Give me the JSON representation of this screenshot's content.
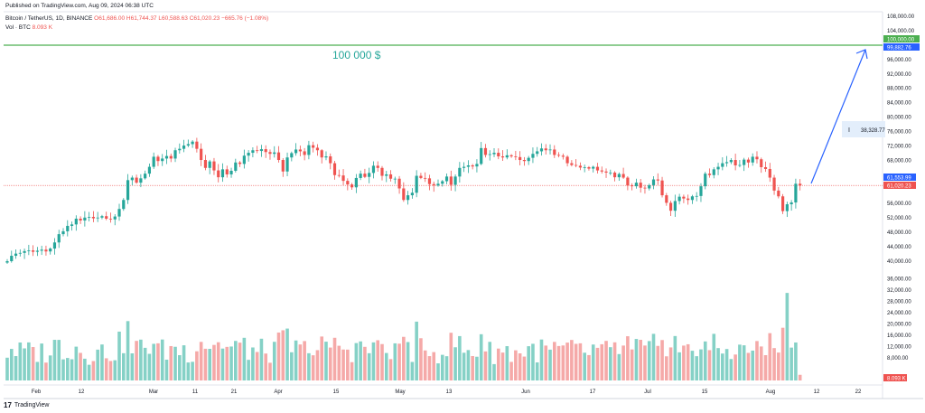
{
  "header": {
    "published": "Published on TradingView.com, Aug 09, 2024 06:38 UTC",
    "symbol": "Bitcoin / TetherUS, 1D, BINANCE",
    "ohlc": "O61,686.00  H61,744.37  L60,588.63  C61,020.23  −665.76 (−1.08%)",
    "volume_label": "Vol · BTC",
    "volume_value": "8.093 K"
  },
  "annotation": {
    "target_text": "100 000 $",
    "measure_text": "38,328.77"
  },
  "footer": {
    "brand": "TradingView",
    "logo": "17"
  },
  "colors": {
    "up": "#26a69a",
    "down": "#ef5350",
    "vol_up": "#85d1c6",
    "vol_down": "#f5a9a8",
    "target_line": "#4caf50",
    "arrow": "#2962ff",
    "measure_bg": "#e3eefb"
  },
  "chart_data": {
    "type": "candlestick",
    "title": "Bitcoin / TetherUS, 1D, BINANCE",
    "price_axis": {
      "ticks": [
        "108,000.00",
        "104,000.00",
        "96,000.00",
        "92,000.00",
        "88,000.00",
        "84,000.00",
        "80,000.00",
        "76,000.00",
        "72,000.00",
        "68,000.00",
        "56,000.00",
        "52,000.00",
        "48,000.00",
        "44,000.00",
        "40,000.00",
        "36,000.00",
        "32,000.00",
        "28,000.00",
        "24,000.00",
        "20,000.00",
        "16,000.00",
        "12,000.00",
        "8,000.00"
      ],
      "range": [
        0,
        110000
      ]
    },
    "time_axis": {
      "labels": [
        "Feb",
        "12",
        "Mar",
        "11",
        "21",
        "Apr",
        "15",
        "May",
        "13",
        "Jun",
        "17",
        "Jul",
        "15",
        "Aug",
        "12",
        "22"
      ]
    },
    "price_tags": {
      "target": "100,000.00",
      "target_sub": "99,882.76",
      "last_high": "61,553.99",
      "last_close": "61,020.23",
      "volume_last": "8.093 K"
    },
    "target_level": 100000,
    "closes": [
      40000,
      41500,
      42100,
      42300,
      42800,
      43000,
      42600,
      42900,
      43200,
      42700,
      43500,
      45200,
      47500,
      48300,
      49800,
      50200,
      51800,
      51300,
      52100,
      52300,
      51900,
      52100,
      52500,
      51800,
      51600,
      52400,
      54500,
      57000,
      62500,
      63200,
      61800,
      63000,
      64300,
      66200,
      69000,
      67800,
      68500,
      69200,
      68500,
      70800,
      71200,
      72100,
      72500,
      73200,
      71200,
      68100,
      65900,
      67700,
      65200,
      63300,
      65500,
      64100,
      65100,
      67400,
      67000,
      69300,
      70100,
      70800,
      70600,
      71100,
      70300,
      69800,
      70200,
      68100,
      64900,
      68800,
      70000,
      71000,
      70500,
      69500,
      72200,
      71500,
      70800,
      68800,
      69100,
      67200,
      63900,
      63800,
      62300,
      61300,
      60500,
      63100,
      64300,
      63400,
      64500,
      66500,
      65900,
      63700,
      64100,
      62900,
      62900,
      60200,
      57000,
      58300,
      59000,
      63700,
      63100,
      63000,
      61400,
      61000,
      61500,
      62200,
      63500,
      61200,
      63500,
      65900,
      66200,
      66600,
      66300,
      67000,
      71400,
      69500,
      69700,
      70100,
      69100,
      68800,
      69400,
      69100,
      68900,
      68100,
      67800,
      68700,
      69800,
      70500,
      71300,
      70800,
      71000,
      69500,
      69300,
      69000,
      67200,
      66700,
      66500,
      66000,
      66100,
      65700,
      66200,
      65200,
      64900,
      64600,
      64600,
      63300,
      64200,
      63200,
      61000,
      60800,
      61800,
      60400,
      60200,
      61100,
      62700,
      62400,
      58300,
      56200,
      54000,
      56700,
      57900,
      57400,
      57000,
      58000,
      58100,
      60800,
      64300,
      63900,
      65500,
      66200,
      67200,
      67500,
      68100,
      66600,
      66700,
      68200,
      67400,
      69000,
      68300,
      66100,
      65600,
      63200,
      59600,
      58000,
      53900,
      55800,
      56300,
      61500,
      61020
    ]
  }
}
